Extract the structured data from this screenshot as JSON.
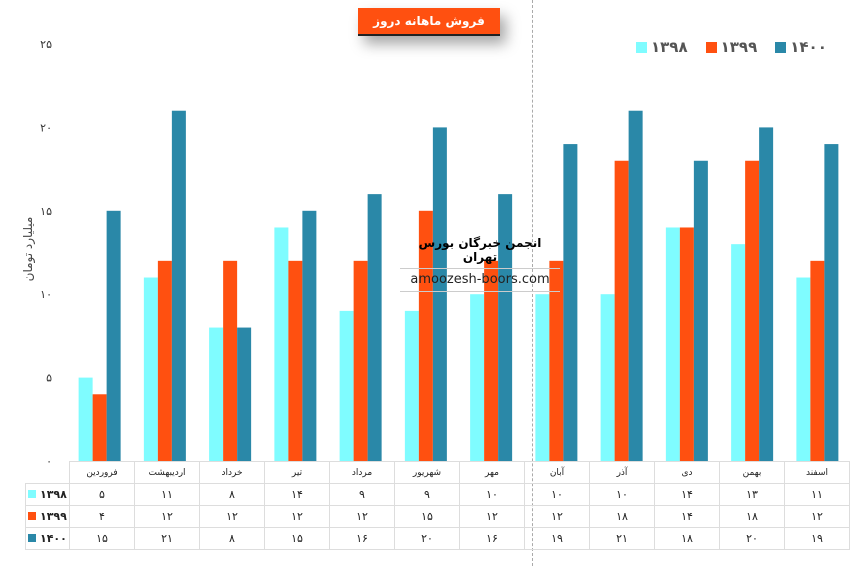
{
  "chart_data": {
    "type": "bar",
    "title": "فروش ماهانه دروز",
    "ylabel": "میلیارد تومان",
    "xlabel": "",
    "ylim": [
      0,
      25
    ],
    "yticks": [
      0,
      5,
      10,
      15,
      20,
      25
    ],
    "ytick_labels": [
      "۰",
      "۵",
      "۱۰",
      "۱۵",
      "۲۰",
      "۲۵"
    ],
    "grid": false,
    "legend_position": "top-right",
    "categories": [
      "فروردین",
      "اردیبهشت",
      "خرداد",
      "تیر",
      "مرداد",
      "شهریور",
      "مهر",
      "آبان",
      "آذر",
      "دی",
      "بهمن",
      "اسفند"
    ],
    "series": [
      {
        "name": "۱۳۹۸",
        "color": "#7ffcff",
        "values": [
          5,
          11,
          8,
          14,
          9,
          9,
          10,
          10,
          10,
          14,
          13,
          11
        ],
        "labels": [
          "۵",
          "۱۱",
          "۸",
          "۱۴",
          "۹",
          "۹",
          "۱۰",
          "۱۰",
          "۱۰",
          "۱۴",
          "۱۳",
          "۱۱"
        ]
      },
      {
        "name": "۱۳۹۹",
        "color": "#ff5010",
        "values": [
          4,
          12,
          12,
          12,
          12,
          15,
          12,
          12,
          18,
          14,
          18,
          12
        ],
        "labels": [
          "۴",
          "۱۲",
          "۱۲",
          "۱۲",
          "۱۲",
          "۱۵",
          "۱۲",
          "۱۲",
          "۱۸",
          "۱۴",
          "۱۸",
          "۱۲"
        ]
      },
      {
        "name": "۱۴۰۰",
        "color": "#2a88a8",
        "values": [
          15,
          21,
          8,
          15,
          16,
          20,
          16,
          19,
          21,
          18,
          20,
          19
        ],
        "labels": [
          "۱۵",
          "۲۱",
          "۸",
          "۱۵",
          "۱۶",
          "۲۰",
          "۱۶",
          "۱۹",
          "۲۱",
          "۱۸",
          "۲۰",
          "۱۹"
        ]
      }
    ]
  },
  "watermark": {
    "title": "انجمن خبرگان بورس تهران",
    "url": "amoozesh-boors.com"
  }
}
